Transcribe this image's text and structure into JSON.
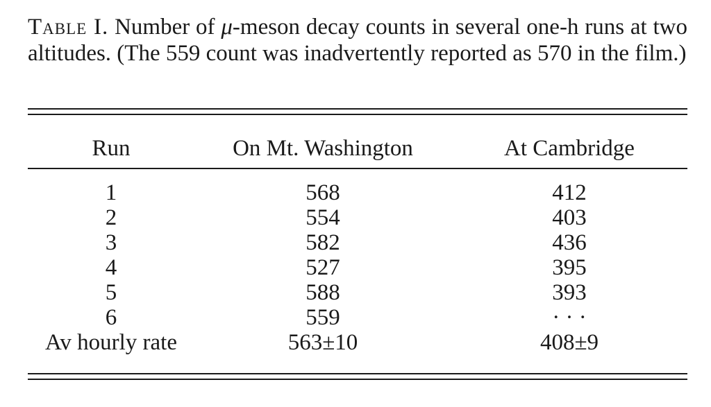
{
  "caption": {
    "label": "Table I.",
    "text_before_mu": " Number of ",
    "mu": "μ",
    "text_after_mu": "-meson decay counts in several one-h runs at two altitudes. (The 559 count was inadvertently reported as 570 in the film.)"
  },
  "table": {
    "headers": [
      "Run",
      "On Mt. Washington",
      "At Cambridge"
    ],
    "rows": [
      [
        "1",
        "568",
        "412"
      ],
      [
        "2",
        "554",
        "403"
      ],
      [
        "3",
        "582",
        "436"
      ],
      [
        "4",
        "527",
        "395"
      ],
      [
        "5",
        "588",
        "393"
      ],
      [
        "6",
        "559",
        "· · ·"
      ],
      [
        "Av hourly rate",
        "563±10",
        "408±9"
      ]
    ]
  }
}
